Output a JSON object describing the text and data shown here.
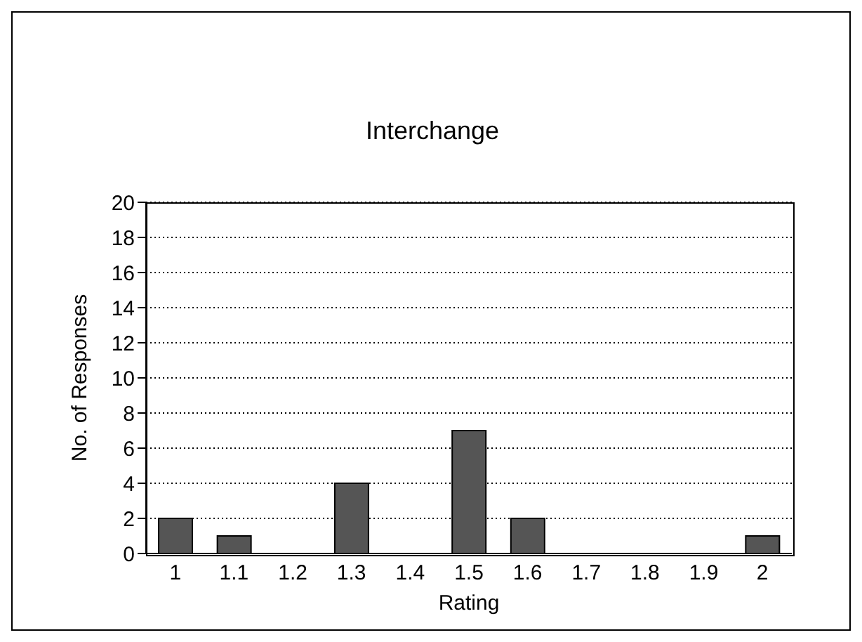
{
  "chart_data": {
    "type": "bar",
    "title": "Interchange",
    "xlabel": "Rating",
    "ylabel": "No. of Responses",
    "categories": [
      "1",
      "1.1",
      "1.2",
      "1.3",
      "1.4",
      "1.5",
      "1.6",
      "1.7",
      "1.8",
      "1.9",
      "2"
    ],
    "values": [
      2,
      1,
      0,
      4,
      0,
      7,
      2,
      0,
      0,
      0,
      1
    ],
    "color": "#555555",
    "ylim": [
      0,
      20
    ],
    "yticks": [
      0,
      2,
      4,
      6,
      8,
      10,
      12,
      14,
      16,
      18,
      20
    ],
    "grid": "y"
  }
}
